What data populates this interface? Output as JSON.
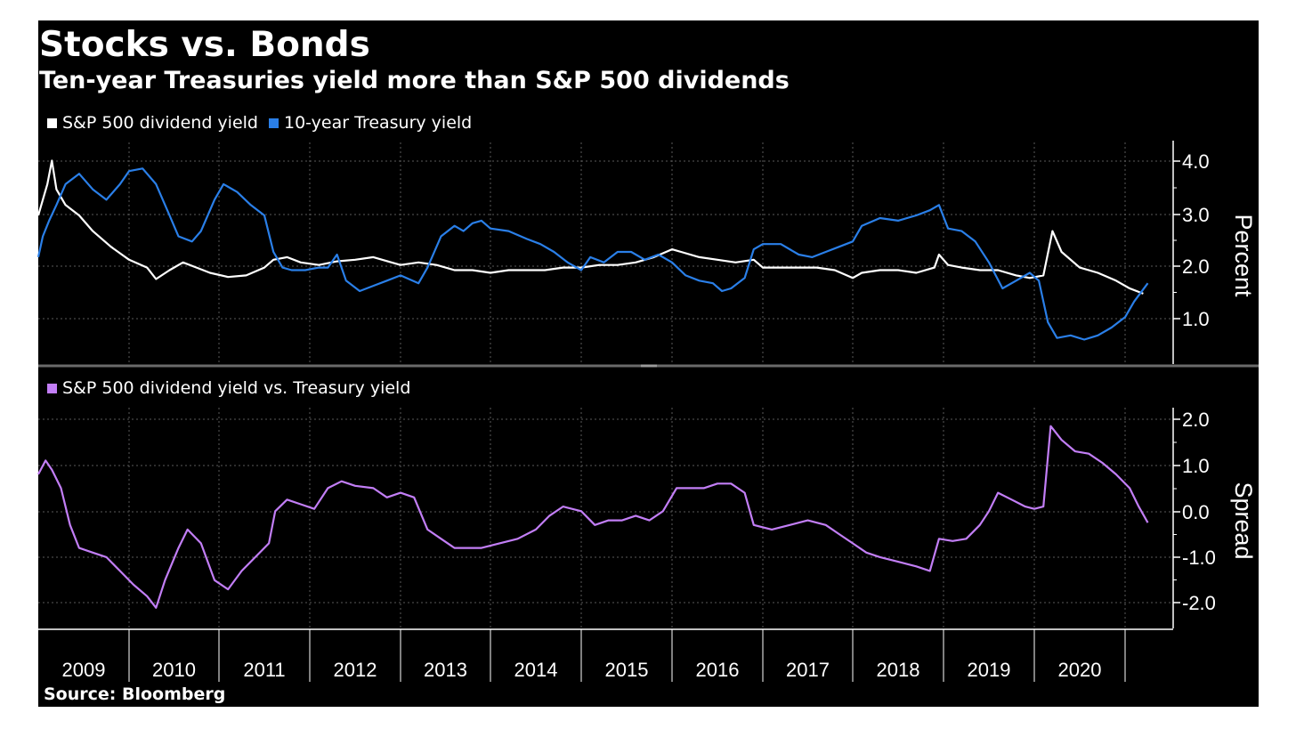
{
  "title": "Stocks vs. Bonds",
  "subtitle": "Ten-year Treasuries yield more than S&P 500 dividends",
  "source": "Source: Bloomberg",
  "colors": {
    "background": "#000000",
    "dividend": "#ffffff",
    "treasury": "#2a7fe8",
    "spread": "#c27ef6",
    "grid": "#5a5a5a"
  },
  "chart_data": [
    {
      "type": "line",
      "title": "",
      "ylabel": "Percent",
      "ylim": [
        0.15,
        4.4
      ],
      "yticks": [
        "4.0",
        "3.0",
        "2.0",
        "1.0"
      ],
      "xticks": [
        "2009",
        "2010",
        "2011",
        "2012",
        "2013",
        "2014",
        "2015",
        "2016",
        "2017",
        "2018",
        "2019",
        "2020"
      ],
      "xlim": [
        2009.0,
        2021.25
      ],
      "grid": true,
      "legend_position": "top-left",
      "series": [
        {
          "name": "S&P 500 dividend yield",
          "color": "#ffffff",
          "points": [
            [
              2009.0,
              3.0
            ],
            [
              2009.05,
              3.3
            ],
            [
              2009.1,
              3.6
            ],
            [
              2009.15,
              4.05
            ],
            [
              2009.2,
              3.5
            ],
            [
              2009.3,
              3.2
            ],
            [
              2009.45,
              3.0
            ],
            [
              2009.6,
              2.7
            ],
            [
              2009.8,
              2.4
            ],
            [
              2010.0,
              2.15
            ],
            [
              2010.2,
              2.0
            ],
            [
              2010.3,
              1.78
            ],
            [
              2010.45,
              1.95
            ],
            [
              2010.6,
              2.1
            ],
            [
              2010.75,
              2.0
            ],
            [
              2010.9,
              1.9
            ],
            [
              2011.1,
              1.82
            ],
            [
              2011.3,
              1.85
            ],
            [
              2011.5,
              2.0
            ],
            [
              2011.6,
              2.15
            ],
            [
              2011.75,
              2.2
            ],
            [
              2011.9,
              2.1
            ],
            [
              2012.1,
              2.05
            ],
            [
              2012.3,
              2.12
            ],
            [
              2012.5,
              2.15
            ],
            [
              2012.7,
              2.2
            ],
            [
              2012.9,
              2.1
            ],
            [
              2013.0,
              2.05
            ],
            [
              2013.2,
              2.1
            ],
            [
              2013.4,
              2.05
            ],
            [
              2013.6,
              1.95
            ],
            [
              2013.8,
              1.95
            ],
            [
              2014.0,
              1.9
            ],
            [
              2014.2,
              1.95
            ],
            [
              2014.4,
              1.95
            ],
            [
              2014.6,
              1.95
            ],
            [
              2014.8,
              2.0
            ],
            [
              2015.0,
              2.0
            ],
            [
              2015.2,
              2.05
            ],
            [
              2015.4,
              2.05
            ],
            [
              2015.6,
              2.1
            ],
            [
              2015.8,
              2.2
            ],
            [
              2016.0,
              2.35
            ],
            [
              2016.1,
              2.3
            ],
            [
              2016.3,
              2.2
            ],
            [
              2016.5,
              2.15
            ],
            [
              2016.7,
              2.1
            ],
            [
              2016.9,
              2.15
            ],
            [
              2017.0,
              2.0
            ],
            [
              2017.2,
              2.0
            ],
            [
              2017.4,
              2.0
            ],
            [
              2017.6,
              2.0
            ],
            [
              2017.8,
              1.95
            ],
            [
              2018.0,
              1.8
            ],
            [
              2018.1,
              1.9
            ],
            [
              2018.3,
              1.95
            ],
            [
              2018.5,
              1.95
            ],
            [
              2018.7,
              1.9
            ],
            [
              2018.9,
              2.0
            ],
            [
              2018.95,
              2.25
            ],
            [
              2019.05,
              2.05
            ],
            [
              2019.2,
              2.0
            ],
            [
              2019.4,
              1.95
            ],
            [
              2019.6,
              1.95
            ],
            [
              2019.8,
              1.85
            ],
            [
              2019.95,
              1.8
            ],
            [
              2020.1,
              1.85
            ],
            [
              2020.2,
              2.7
            ],
            [
              2020.3,
              2.3
            ],
            [
              2020.5,
              2.0
            ],
            [
              2020.7,
              1.9
            ],
            [
              2020.9,
              1.75
            ],
            [
              2021.05,
              1.6
            ],
            [
              2021.2,
              1.5
            ]
          ]
        },
        {
          "name": "10-year Treasury yield",
          "color": "#2a7fe8",
          "points": [
            [
              2009.0,
              2.2
            ],
            [
              2009.05,
              2.6
            ],
            [
              2009.12,
              2.9
            ],
            [
              2009.2,
              3.2
            ],
            [
              2009.3,
              3.6
            ],
            [
              2009.45,
              3.8
            ],
            [
              2009.6,
              3.5
            ],
            [
              2009.75,
              3.3
            ],
            [
              2009.9,
              3.6
            ],
            [
              2010.0,
              3.85
            ],
            [
              2010.15,
              3.9
            ],
            [
              2010.3,
              3.6
            ],
            [
              2010.45,
              3.0
            ],
            [
              2010.55,
              2.6
            ],
            [
              2010.7,
              2.5
            ],
            [
              2010.8,
              2.7
            ],
            [
              2010.95,
              3.3
            ],
            [
              2011.05,
              3.6
            ],
            [
              2011.2,
              3.45
            ],
            [
              2011.35,
              3.2
            ],
            [
              2011.5,
              3.0
            ],
            [
              2011.6,
              2.3
            ],
            [
              2011.7,
              2.0
            ],
            [
              2011.8,
              1.95
            ],
            [
              2011.95,
              1.95
            ],
            [
              2012.1,
              2.0
            ],
            [
              2012.2,
              2.0
            ],
            [
              2012.3,
              2.25
            ],
            [
              2012.4,
              1.75
            ],
            [
              2012.55,
              1.55
            ],
            [
              2012.7,
              1.65
            ],
            [
              2012.85,
              1.75
            ],
            [
              2013.0,
              1.85
            ],
            [
              2013.2,
              1.7
            ],
            [
              2013.3,
              2.0
            ],
            [
              2013.45,
              2.6
            ],
            [
              2013.6,
              2.8
            ],
            [
              2013.7,
              2.7
            ],
            [
              2013.8,
              2.85
            ],
            [
              2013.9,
              2.9
            ],
            [
              2014.0,
              2.75
            ],
            [
              2014.2,
              2.7
            ],
            [
              2014.4,
              2.55
            ],
            [
              2014.55,
              2.45
            ],
            [
              2014.7,
              2.3
            ],
            [
              2014.85,
              2.1
            ],
            [
              2015.0,
              1.95
            ],
            [
              2015.1,
              2.2
            ],
            [
              2015.25,
              2.1
            ],
            [
              2015.4,
              2.3
            ],
            [
              2015.55,
              2.3
            ],
            [
              2015.7,
              2.15
            ],
            [
              2015.85,
              2.25
            ],
            [
              2016.0,
              2.1
            ],
            [
              2016.15,
              1.85
            ],
            [
              2016.3,
              1.75
            ],
            [
              2016.45,
              1.7
            ],
            [
              2016.55,
              1.55
            ],
            [
              2016.65,
              1.6
            ],
            [
              2016.8,
              1.8
            ],
            [
              2016.9,
              2.35
            ],
            [
              2017.0,
              2.45
            ],
            [
              2017.2,
              2.45
            ],
            [
              2017.4,
              2.25
            ],
            [
              2017.55,
              2.2
            ],
            [
              2017.7,
              2.3
            ],
            [
              2017.85,
              2.4
            ],
            [
              2018.0,
              2.5
            ],
            [
              2018.1,
              2.8
            ],
            [
              2018.3,
              2.95
            ],
            [
              2018.5,
              2.9
            ],
            [
              2018.7,
              3.0
            ],
            [
              2018.85,
              3.1
            ],
            [
              2018.95,
              3.2
            ],
            [
              2019.05,
              2.75
            ],
            [
              2019.2,
              2.7
            ],
            [
              2019.35,
              2.5
            ],
            [
              2019.5,
              2.1
            ],
            [
              2019.65,
              1.6
            ],
            [
              2019.8,
              1.75
            ],
            [
              2019.95,
              1.9
            ],
            [
              2020.05,
              1.75
            ],
            [
              2020.15,
              0.95
            ],
            [
              2020.25,
              0.65
            ],
            [
              2020.4,
              0.7
            ],
            [
              2020.55,
              0.62
            ],
            [
              2020.7,
              0.7
            ],
            [
              2020.85,
              0.85
            ],
            [
              2021.0,
              1.05
            ],
            [
              2021.1,
              1.35
            ],
            [
              2021.25,
              1.7
            ]
          ]
        }
      ]
    },
    {
      "type": "line",
      "title": "",
      "ylabel": "Spread",
      "ylim": [
        -2.55,
        2.25
      ],
      "yticks": [
        "2.0",
        "1.0",
        "0.0",
        "-1.0",
        "-2.0"
      ],
      "xticks": [
        "2009",
        "2010",
        "2011",
        "2012",
        "2013",
        "2014",
        "2015",
        "2016",
        "2017",
        "2018",
        "2019",
        "2020"
      ],
      "xlim": [
        2009.0,
        2021.25
      ],
      "grid": true,
      "legend_position": "top-left",
      "series": [
        {
          "name": "S&P 500 dividend yield vs. Treasury yield",
          "color": "#c27ef6",
          "points": [
            [
              2009.0,
              0.8
            ],
            [
              2009.08,
              1.1
            ],
            [
              2009.15,
              0.9
            ],
            [
              2009.25,
              0.5
            ],
            [
              2009.35,
              -0.3
            ],
            [
              2009.45,
              -0.8
            ],
            [
              2009.6,
              -0.9
            ],
            [
              2009.75,
              -1.0
            ],
            [
              2009.9,
              -1.3
            ],
            [
              2010.05,
              -1.6
            ],
            [
              2010.2,
              -1.85
            ],
            [
              2010.3,
              -2.1
            ],
            [
              2010.4,
              -1.5
            ],
            [
              2010.55,
              -0.8
            ],
            [
              2010.65,
              -0.4
            ],
            [
              2010.8,
              -0.7
            ],
            [
              2010.95,
              -1.5
            ],
            [
              2011.1,
              -1.7
            ],
            [
              2011.25,
              -1.3
            ],
            [
              2011.4,
              -1.0
            ],
            [
              2011.55,
              -0.7
            ],
            [
              2011.62,
              0.0
            ],
            [
              2011.75,
              0.25
            ],
            [
              2011.9,
              0.15
            ],
            [
              2012.05,
              0.05
            ],
            [
              2012.2,
              0.5
            ],
            [
              2012.35,
              0.65
            ],
            [
              2012.5,
              0.55
            ],
            [
              2012.7,
              0.5
            ],
            [
              2012.85,
              0.3
            ],
            [
              2013.0,
              0.4
            ],
            [
              2013.15,
              0.3
            ],
            [
              2013.3,
              -0.4
            ],
            [
              2013.45,
              -0.6
            ],
            [
              2013.6,
              -0.8
            ],
            [
              2013.75,
              -0.8
            ],
            [
              2013.9,
              -0.8
            ],
            [
              2014.1,
              -0.7
            ],
            [
              2014.3,
              -0.6
            ],
            [
              2014.5,
              -0.4
            ],
            [
              2014.65,
              -0.1
            ],
            [
              2014.8,
              0.1
            ],
            [
              2015.0,
              0.0
            ],
            [
              2015.15,
              -0.3
            ],
            [
              2015.3,
              -0.2
            ],
            [
              2015.45,
              -0.2
            ],
            [
              2015.6,
              -0.1
            ],
            [
              2015.75,
              -0.2
            ],
            [
              2015.9,
              0.0
            ],
            [
              2016.05,
              0.5
            ],
            [
              2016.2,
              0.5
            ],
            [
              2016.35,
              0.5
            ],
            [
              2016.5,
              0.6
            ],
            [
              2016.65,
              0.6
            ],
            [
              2016.8,
              0.4
            ],
            [
              2016.9,
              -0.3
            ],
            [
              2017.1,
              -0.4
            ],
            [
              2017.3,
              -0.3
            ],
            [
              2017.5,
              -0.2
            ],
            [
              2017.7,
              -0.3
            ],
            [
              2017.85,
              -0.5
            ],
            [
              2018.0,
              -0.7
            ],
            [
              2018.15,
              -0.9
            ],
            [
              2018.3,
              -1.0
            ],
            [
              2018.5,
              -1.1
            ],
            [
              2018.7,
              -1.2
            ],
            [
              2018.85,
              -1.3
            ],
            [
              2018.95,
              -0.6
            ],
            [
              2019.1,
              -0.65
            ],
            [
              2019.25,
              -0.6
            ],
            [
              2019.4,
              -0.3
            ],
            [
              2019.5,
              0.0
            ],
            [
              2019.6,
              0.4
            ],
            [
              2019.75,
              0.25
            ],
            [
              2019.9,
              0.1
            ],
            [
              2020.0,
              0.05
            ],
            [
              2020.1,
              0.1
            ],
            [
              2020.18,
              1.85
            ],
            [
              2020.3,
              1.55
            ],
            [
              2020.45,
              1.3
            ],
            [
              2020.6,
              1.25
            ],
            [
              2020.75,
              1.05
            ],
            [
              2020.9,
              0.8
            ],
            [
              2021.05,
              0.5
            ],
            [
              2021.15,
              0.1
            ],
            [
              2021.25,
              -0.25
            ]
          ]
        }
      ]
    }
  ]
}
